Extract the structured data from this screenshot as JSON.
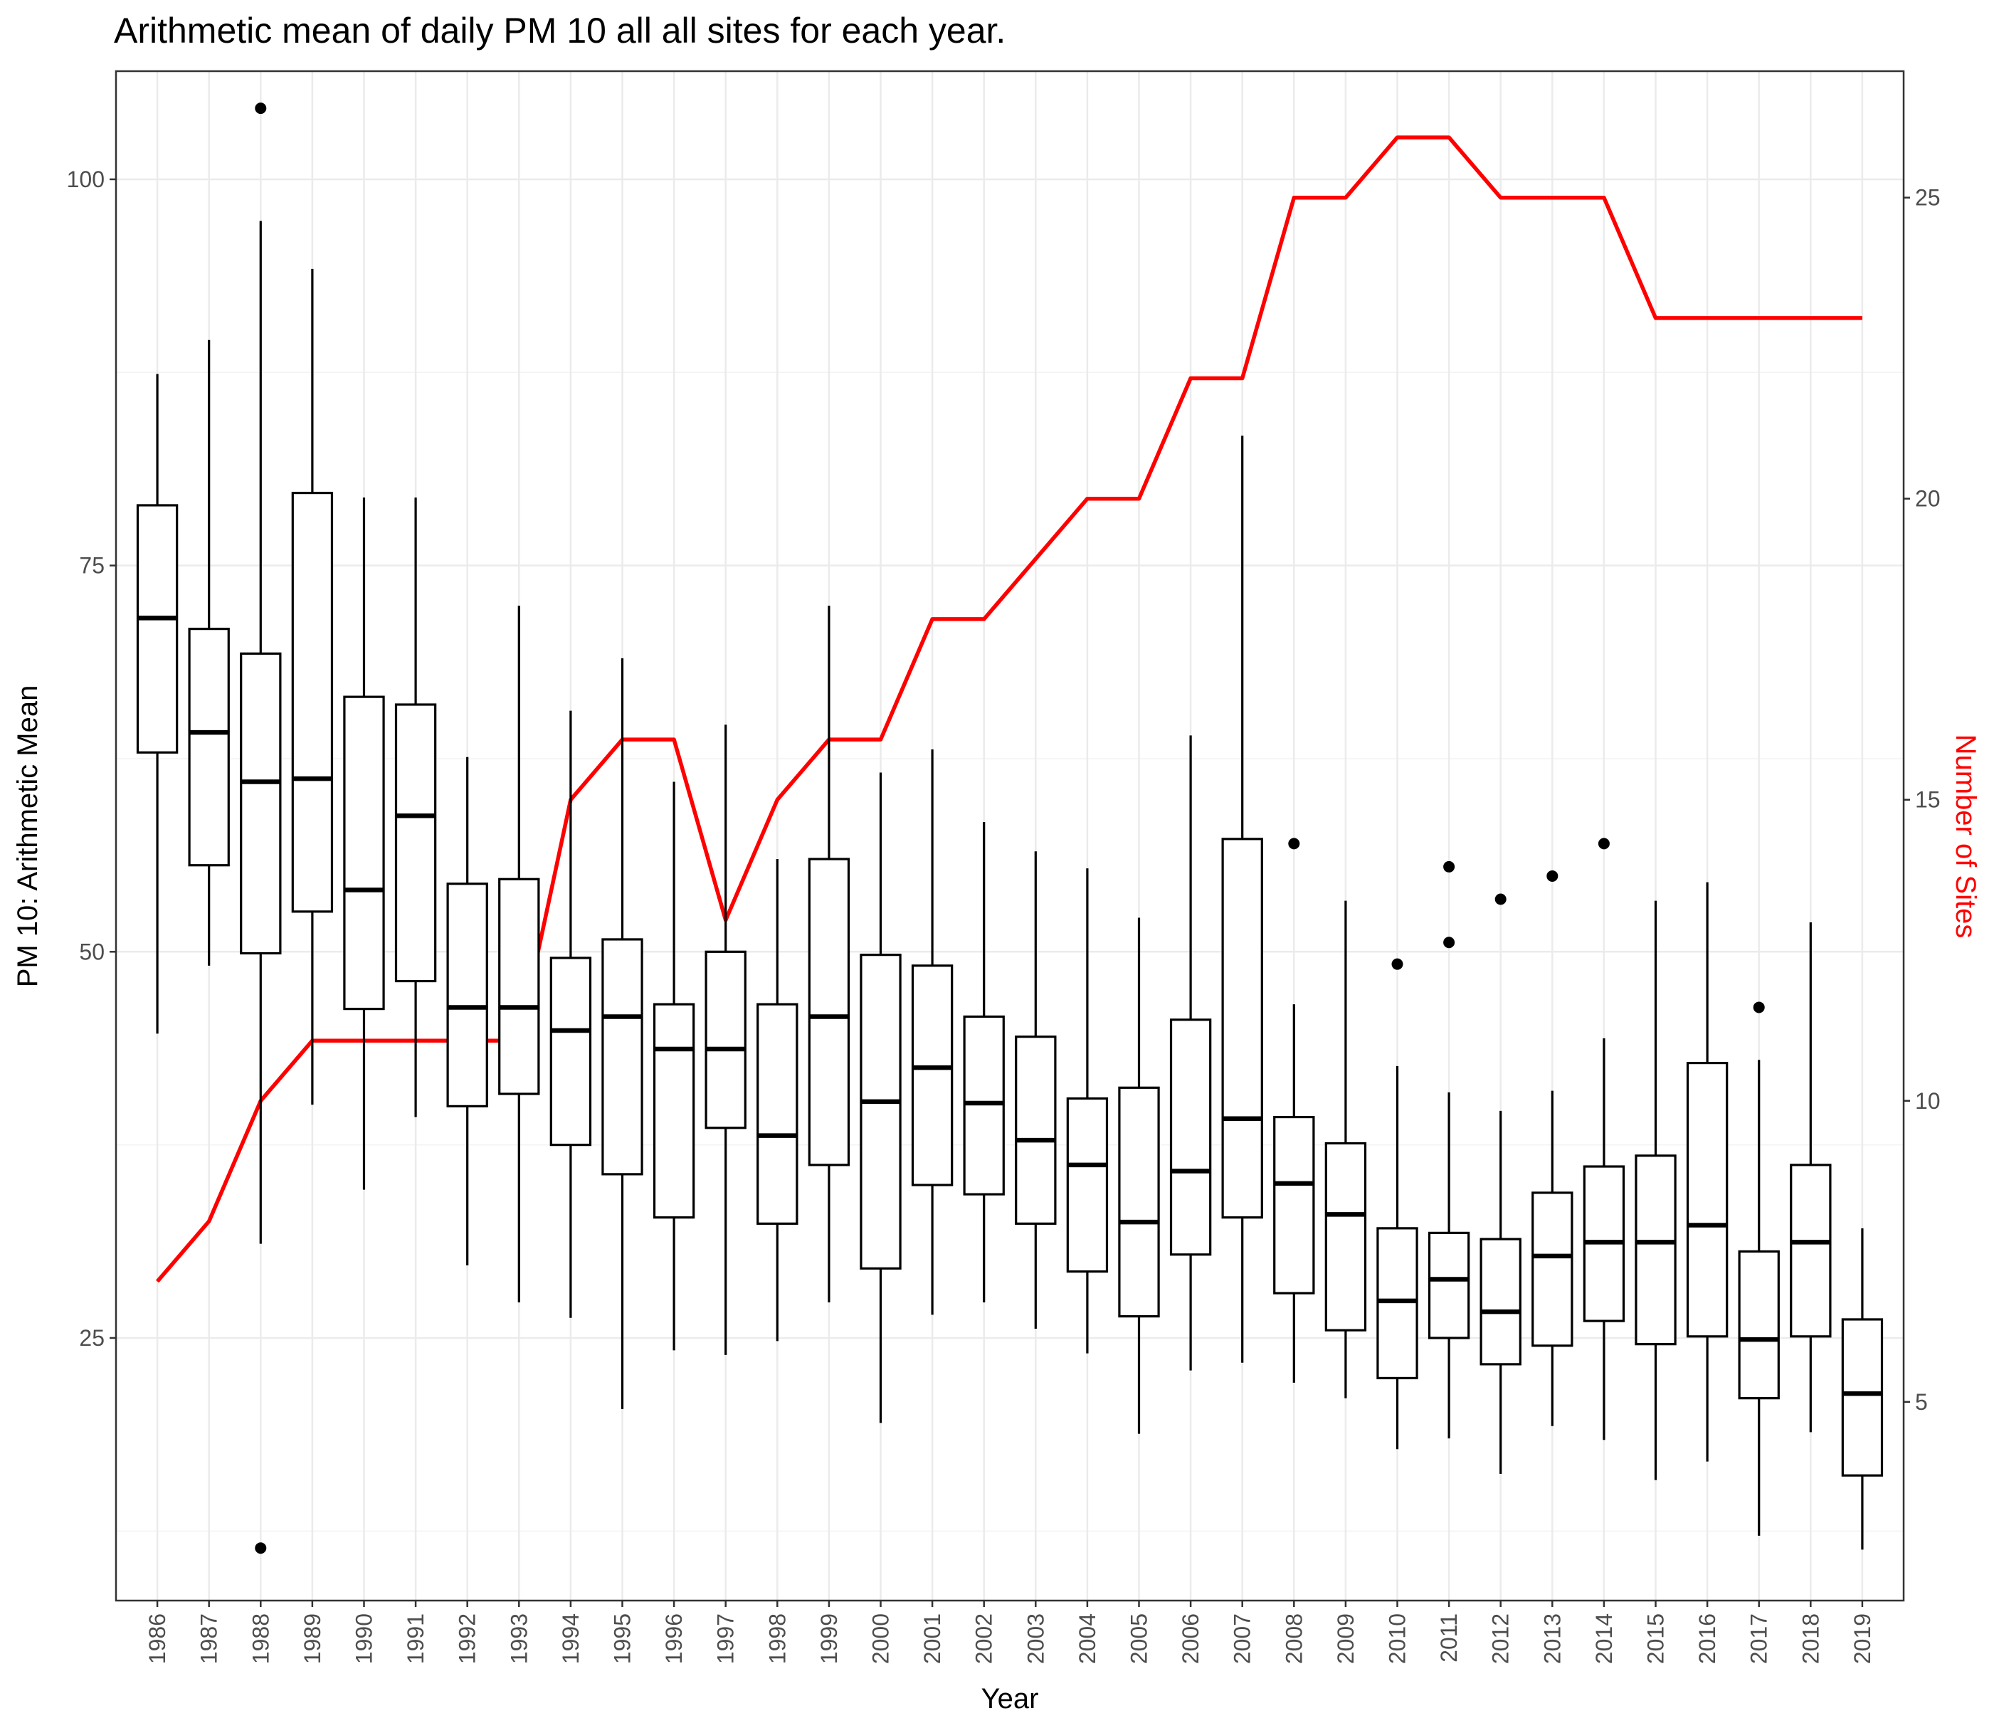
{
  "chart_data": {
    "type": "box",
    "title": "Arithmetic mean of daily PM 10 all all sites for each year.",
    "xlabel": "Year",
    "ylabel": "PM 10: Arithmetic Mean",
    "y2label": "Number of Sites",
    "ylim": [
      8,
      107
    ],
    "y2lim": [
      1.7,
      27.1
    ],
    "yticks": [
      25,
      50,
      75,
      100
    ],
    "y2ticks": [
      5,
      10,
      15,
      20,
      25
    ],
    "grid": true,
    "colors": {
      "boxes": "#000000",
      "sites_line": "#ff0000",
      "y2label": "#ff0000"
    },
    "categories": [
      "1986",
      "1987",
      "1988",
      "1989",
      "1990",
      "1991",
      "1992",
      "1993",
      "1994",
      "1995",
      "1996",
      "1997",
      "1998",
      "1999",
      "2000",
      "2001",
      "2002",
      "2003",
      "2004",
      "2005",
      "2006",
      "2007",
      "2008",
      "2009",
      "2010",
      "2011",
      "2012",
      "2013",
      "2014",
      "2015",
      "2016",
      "2017",
      "2018",
      "2019"
    ],
    "boxes": [
      {
        "year": "1986",
        "whisker_low": 44.7,
        "q1": 62.9,
        "median": 71.6,
        "q3": 78.9,
        "whisker_high": 87.4,
        "outliers": []
      },
      {
        "year": "1987",
        "whisker_low": 49.1,
        "q1": 55.6,
        "median": 64.2,
        "q3": 70.9,
        "whisker_high": 89.6,
        "outliers": []
      },
      {
        "year": "1988",
        "whisker_low": 31.1,
        "q1": 49.9,
        "median": 61.0,
        "q3": 69.3,
        "whisker_high": 97.3,
        "outliers": [
          104.6,
          11.4
        ]
      },
      {
        "year": "1989",
        "whisker_low": 40.1,
        "q1": 52.6,
        "median": 61.2,
        "q3": 79.7,
        "whisker_high": 94.2,
        "outliers": []
      },
      {
        "year": "1990",
        "whisker_low": 34.6,
        "q1": 46.3,
        "median": 54.0,
        "q3": 66.5,
        "whisker_high": 79.4,
        "outliers": []
      },
      {
        "year": "1991",
        "whisker_low": 39.3,
        "q1": 48.1,
        "median": 58.8,
        "q3": 66.0,
        "whisker_high": 79.4,
        "outliers": []
      },
      {
        "year": "1992",
        "whisker_low": 29.7,
        "q1": 40.0,
        "median": 46.4,
        "q3": 54.4,
        "whisker_high": 62.6,
        "outliers": []
      },
      {
        "year": "1993",
        "whisker_low": 27.3,
        "q1": 40.8,
        "median": 46.4,
        "q3": 54.7,
        "whisker_high": 72.4,
        "outliers": []
      },
      {
        "year": "1994",
        "whisker_low": 26.3,
        "q1": 37.5,
        "median": 44.9,
        "q3": 49.6,
        "whisker_high": 65.6,
        "outliers": []
      },
      {
        "year": "1995",
        "whisker_low": 20.4,
        "q1": 35.6,
        "median": 45.8,
        "q3": 50.8,
        "whisker_high": 69.0,
        "outliers": []
      },
      {
        "year": "1996",
        "whisker_low": 24.2,
        "q1": 32.8,
        "median": 43.7,
        "q3": 46.6,
        "whisker_high": 61.0,
        "outliers": []
      },
      {
        "year": "1997",
        "whisker_low": 23.9,
        "q1": 38.6,
        "median": 43.7,
        "q3": 50.0,
        "whisker_high": 64.7,
        "outliers": []
      },
      {
        "year": "1998",
        "whisker_low": 24.8,
        "q1": 32.4,
        "median": 38.1,
        "q3": 46.6,
        "whisker_high": 56.0,
        "outliers": []
      },
      {
        "year": "1999",
        "whisker_low": 27.3,
        "q1": 36.2,
        "median": 45.8,
        "q3": 56.0,
        "whisker_high": 72.4,
        "outliers": []
      },
      {
        "year": "2000",
        "whisker_low": 19.5,
        "q1": 29.5,
        "median": 40.3,
        "q3": 49.8,
        "whisker_high": 61.6,
        "outliers": []
      },
      {
        "year": "2001",
        "whisker_low": 26.5,
        "q1": 34.9,
        "median": 42.5,
        "q3": 49.1,
        "whisker_high": 63.1,
        "outliers": []
      },
      {
        "year": "2002",
        "whisker_low": 27.3,
        "q1": 34.3,
        "median": 40.2,
        "q3": 45.8,
        "whisker_high": 58.4,
        "outliers": []
      },
      {
        "year": "2003",
        "whisker_low": 25.6,
        "q1": 32.4,
        "median": 37.8,
        "q3": 44.5,
        "whisker_high": 56.5,
        "outliers": []
      },
      {
        "year": "2004",
        "whisker_low": 24.0,
        "q1": 29.3,
        "median": 36.2,
        "q3": 40.5,
        "whisker_high": 55.4,
        "outliers": []
      },
      {
        "year": "2005",
        "whisker_low": 18.8,
        "q1": 26.4,
        "median": 32.5,
        "q3": 41.2,
        "whisker_high": 52.2,
        "outliers": []
      },
      {
        "year": "2006",
        "whisker_low": 22.9,
        "q1": 30.4,
        "median": 35.8,
        "q3": 45.6,
        "whisker_high": 64.0,
        "outliers": []
      },
      {
        "year": "2007",
        "whisker_low": 23.4,
        "q1": 32.8,
        "median": 39.2,
        "q3": 57.3,
        "whisker_high": 83.4,
        "outliers": []
      },
      {
        "year": "2008",
        "whisker_low": 22.1,
        "q1": 27.9,
        "median": 35.0,
        "q3": 39.3,
        "whisker_high": 46.6,
        "outliers": [
          57.0
        ]
      },
      {
        "year": "2009",
        "whisker_low": 21.1,
        "q1": 25.5,
        "median": 33.0,
        "q3": 37.6,
        "whisker_high": 53.3,
        "outliers": []
      },
      {
        "year": "2010",
        "whisker_low": 17.8,
        "q1": 22.4,
        "median": 27.4,
        "q3": 32.1,
        "whisker_high": 42.6,
        "outliers": [
          49.2
        ]
      },
      {
        "year": "2011",
        "whisker_low": 18.5,
        "q1": 25.0,
        "median": 28.8,
        "q3": 31.8,
        "whisker_high": 40.9,
        "outliers": [
          55.5,
          50.6
        ]
      },
      {
        "year": "2012",
        "whisker_low": 16.2,
        "q1": 23.3,
        "median": 26.7,
        "q3": 31.4,
        "whisker_high": 39.7,
        "outliers": [
          53.4
        ]
      },
      {
        "year": "2013",
        "whisker_low": 19.3,
        "q1": 24.5,
        "median": 30.3,
        "q3": 34.4,
        "whisker_high": 41.0,
        "outliers": [
          54.9
        ]
      },
      {
        "year": "2014",
        "whisker_low": 18.4,
        "q1": 26.1,
        "median": 31.2,
        "q3": 36.1,
        "whisker_high": 44.4,
        "outliers": [
          57.0
        ]
      },
      {
        "year": "2015",
        "whisker_low": 15.8,
        "q1": 24.6,
        "median": 31.2,
        "q3": 36.8,
        "whisker_high": 53.3,
        "outliers": []
      },
      {
        "year": "2016",
        "whisker_low": 17.0,
        "q1": 25.1,
        "median": 32.3,
        "q3": 42.8,
        "whisker_high": 54.5,
        "outliers": []
      },
      {
        "year": "2017",
        "whisker_low": 12.2,
        "q1": 21.1,
        "median": 24.9,
        "q3": 30.6,
        "whisker_high": 43.0,
        "outliers": [
          46.4
        ]
      },
      {
        "year": "2018",
        "whisker_low": 18.9,
        "q1": 25.1,
        "median": 31.2,
        "q3": 36.2,
        "whisker_high": 51.9,
        "outliers": []
      },
      {
        "year": "2019",
        "whisker_low": 11.3,
        "q1": 16.1,
        "median": 21.4,
        "q3": 26.2,
        "whisker_high": 32.1,
        "outliers": []
      }
    ],
    "series": [
      {
        "name": "Number of Sites",
        "axis": "right",
        "values": [
          7,
          8,
          10,
          11,
          11,
          11,
          11,
          11,
          15,
          16,
          16,
          13,
          15,
          16,
          16,
          18,
          18,
          19,
          20,
          20,
          22,
          22,
          25,
          25,
          26,
          26,
          25,
          25,
          25,
          23,
          23,
          23,
          23,
          23
        ]
      }
    ]
  }
}
